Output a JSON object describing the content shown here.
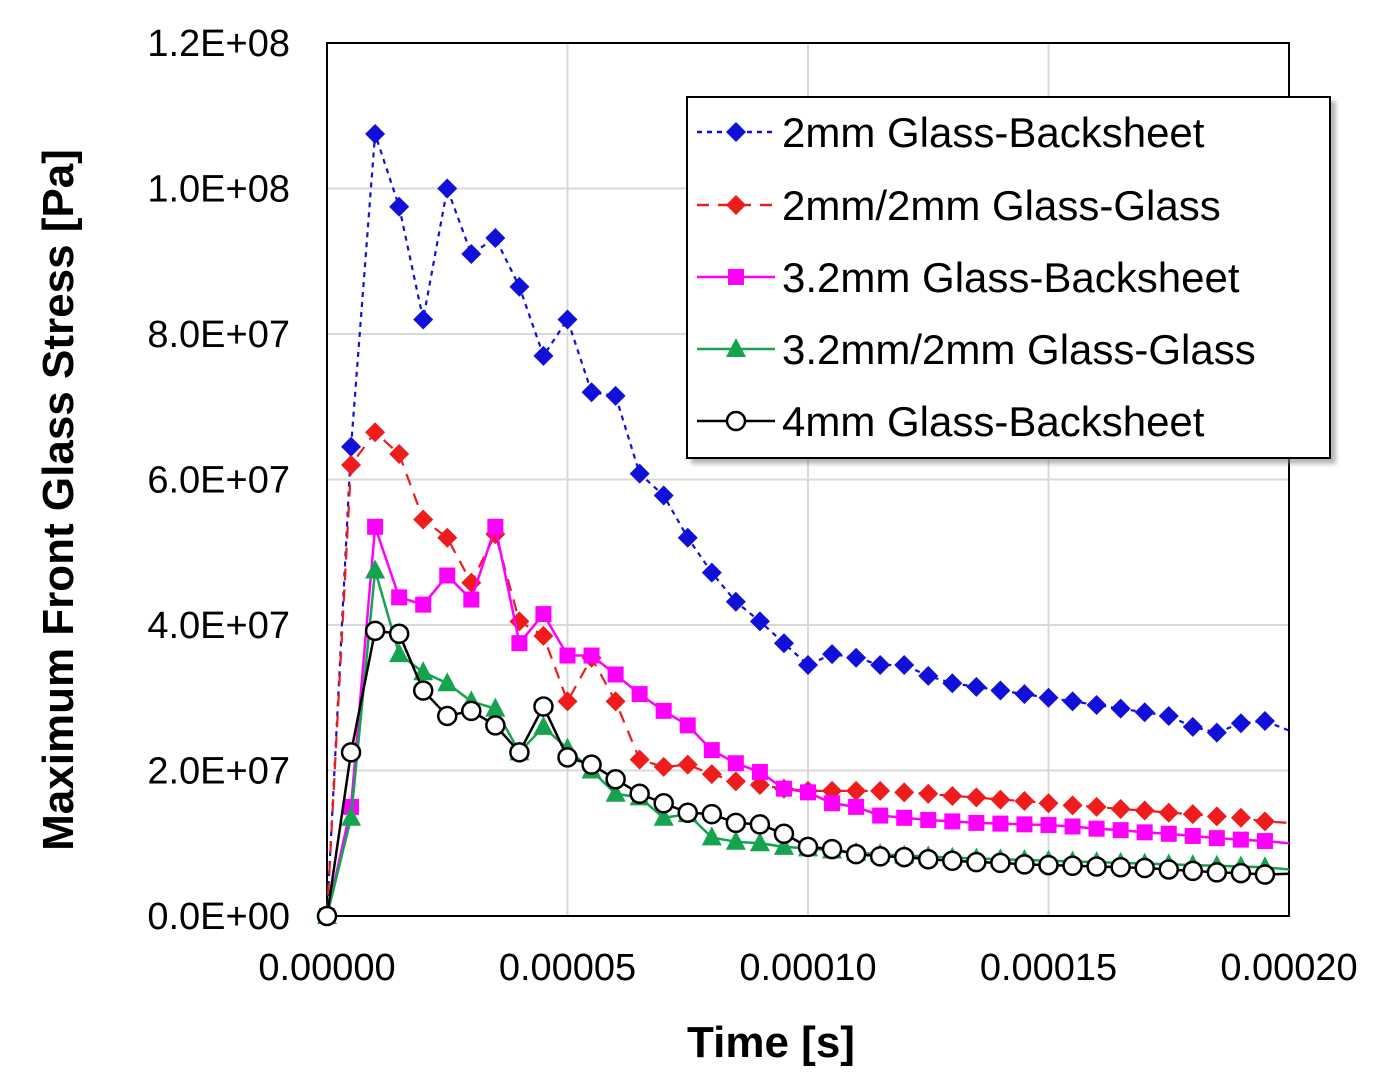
{
  "chart_data": {
    "type": "line",
    "title": "",
    "xlabel": "Time [s]",
    "ylabel": "Maximum Front Glass Stress [Pa]",
    "xlim": [
      0,
      0.0002
    ],
    "ylim": [
      0,
      120000000
    ],
    "x_ticks": [
      "0.00000",
      "0.00005",
      "0.00010",
      "0.00015",
      "0.00020"
    ],
    "x_tick_values": [
      0,
      5e-05,
      0.0001,
      0.00015,
      0.0002
    ],
    "y_ticks": [
      "0.0E+00",
      "2.0E+07",
      "4.0E+07",
      "6.0E+07",
      "8.0E+07",
      "1.0E+08",
      "1.2E+08"
    ],
    "y_tick_values": [
      0,
      20000000,
      40000000,
      60000000,
      80000000,
      100000000,
      120000000
    ],
    "grid": true,
    "legend_position": "top-right",
    "series": [
      {
        "name": "2mm Glass-Backsheet",
        "color": "#1010d8",
        "marker": "diamond",
        "line_style": "dotted",
        "x": [
          0,
          5e-06,
          1e-05,
          1.5e-05,
          2e-05,
          2.5e-05,
          3e-05,
          3.5e-05,
          4e-05,
          4.5e-05,
          5e-05,
          5.5e-05,
          6e-05,
          6.5e-05,
          7e-05,
          7.5e-05,
          8e-05,
          8.5e-05,
          9e-05,
          9.5e-05,
          0.0001,
          0.000105,
          0.00011,
          0.000115,
          0.00012,
          0.000125,
          0.00013,
          0.000135,
          0.00014,
          0.000145,
          0.00015,
          0.000155,
          0.00016,
          0.000165,
          0.00017,
          0.000175,
          0.00018,
          0.000185,
          0.00019,
          0.000195,
          0.0002
        ],
        "y": [
          0,
          64500000,
          107500000,
          97500000,
          82000000,
          100000000,
          91000000,
          93200000,
          86500000,
          77000000,
          82000000,
          72000000,
          71500000,
          60800000,
          57800000,
          52000000,
          47200000,
          43200000,
          40500000,
          37500000,
          34500000,
          36000000,
          35500000,
          34500000,
          34500000,
          33000000,
          32000000,
          31500000,
          31000000,
          30500000,
          30000000,
          29500000,
          29000000,
          28500000,
          28000000,
          27500000,
          26000000,
          25200000,
          26500000,
          26800000,
          25500000
        ]
      },
      {
        "name": "2mm/2mm Glass-Glass",
        "color": "#ee1c1c",
        "marker": "diamond",
        "line_style": "dashed",
        "x": [
          0,
          5e-06,
          1e-05,
          1.5e-05,
          2e-05,
          2.5e-05,
          3e-05,
          3.5e-05,
          4e-05,
          4.5e-05,
          5e-05,
          5.5e-05,
          6e-05,
          6.5e-05,
          7e-05,
          7.5e-05,
          8e-05,
          8.5e-05,
          9e-05,
          9.5e-05,
          0.0001,
          0.000105,
          0.00011,
          0.000115,
          0.00012,
          0.000125,
          0.00013,
          0.000135,
          0.00014,
          0.000145,
          0.00015,
          0.000155,
          0.00016,
          0.000165,
          0.00017,
          0.000175,
          0.00018,
          0.000185,
          0.00019,
          0.000195,
          0.0002
        ],
        "y": [
          0,
          62000000,
          66500000,
          63500000,
          54500000,
          52000000,
          45800000,
          52500000,
          40500000,
          38500000,
          29500000,
          35500000,
          29500000,
          21500000,
          20500000,
          20800000,
          19500000,
          18500000,
          18000000,
          17500000,
          17200000,
          17200000,
          17200000,
          17200000,
          17000000,
          16800000,
          16500000,
          16300000,
          16000000,
          15800000,
          15500000,
          15200000,
          15000000,
          14700000,
          14500000,
          14200000,
          14000000,
          13700000,
          13500000,
          13000000,
          12800000
        ]
      },
      {
        "name": "3.2mm Glass-Backsheet",
        "color": "#ff00ff",
        "marker": "square",
        "line_style": "solid",
        "x": [
          0,
          5e-06,
          1e-05,
          1.5e-05,
          2e-05,
          2.5e-05,
          3e-05,
          3.5e-05,
          4e-05,
          4.5e-05,
          5e-05,
          5.5e-05,
          6e-05,
          6.5e-05,
          7e-05,
          7.5e-05,
          8e-05,
          8.5e-05,
          9e-05,
          9.5e-05,
          0.0001,
          0.000105,
          0.00011,
          0.000115,
          0.00012,
          0.000125,
          0.00013,
          0.000135,
          0.00014,
          0.000145,
          0.00015,
          0.000155,
          0.00016,
          0.000165,
          0.00017,
          0.000175,
          0.00018,
          0.000185,
          0.00019,
          0.000195,
          0.0002
        ],
        "y": [
          0,
          15000000,
          53500000,
          43800000,
          42800000,
          46800000,
          43500000,
          53500000,
          37500000,
          41500000,
          35800000,
          35800000,
          33200000,
          30500000,
          28200000,
          26200000,
          22800000,
          21000000,
          19800000,
          17500000,
          17000000,
          15500000,
          15000000,
          13800000,
          13500000,
          13200000,
          13000000,
          12800000,
          12700000,
          12600000,
          12500000,
          12300000,
          12000000,
          11800000,
          11500000,
          11300000,
          11000000,
          10700000,
          10500000,
          10300000,
          10000000
        ]
      },
      {
        "name": "3.2mm/2mm Glass-Glass",
        "color": "#16a350",
        "marker": "triangle",
        "line_style": "solid",
        "x": [
          0,
          5e-06,
          1e-05,
          1.5e-05,
          2e-05,
          2.5e-05,
          3e-05,
          3.5e-05,
          4e-05,
          4.5e-05,
          5e-05,
          5.5e-05,
          6e-05,
          6.5e-05,
          7e-05,
          7.5e-05,
          8e-05,
          8.5e-05,
          9e-05,
          9.5e-05,
          0.0001,
          0.000105,
          0.00011,
          0.000115,
          0.00012,
          0.000125,
          0.00013,
          0.000135,
          0.00014,
          0.000145,
          0.00015,
          0.000155,
          0.00016,
          0.000165,
          0.00017,
          0.000175,
          0.00018,
          0.000185,
          0.00019,
          0.000195,
          0.0002
        ],
        "y": [
          0,
          13500000,
          47500000,
          36000000,
          33500000,
          32000000,
          29500000,
          28500000,
          22500000,
          26000000,
          23000000,
          20000000,
          16800000,
          16300000,
          13500000,
          14000000,
          10800000,
          10200000,
          10000000,
          9500000,
          9300000,
          9000000,
          8700000,
          8500000,
          8300000,
          8200000,
          8000000,
          7900000,
          7800000,
          7700000,
          7600000,
          7500000,
          7400000,
          7300000,
          7200000,
          7100000,
          7000000,
          6900000,
          6800000,
          6700000,
          6400000
        ]
      },
      {
        "name": "4mm Glass-Backsheet",
        "color": "#000000",
        "marker": "circle-open",
        "line_style": "solid",
        "x": [
          0,
          5e-06,
          1e-05,
          1.5e-05,
          2e-05,
          2.5e-05,
          3e-05,
          3.5e-05,
          4e-05,
          4.5e-05,
          5e-05,
          5.5e-05,
          6e-05,
          6.5e-05,
          7e-05,
          7.5e-05,
          8e-05,
          8.5e-05,
          9e-05,
          9.5e-05,
          0.0001,
          0.000105,
          0.00011,
          0.000115,
          0.00012,
          0.000125,
          0.00013,
          0.000135,
          0.00014,
          0.000145,
          0.00015,
          0.000155,
          0.00016,
          0.000165,
          0.00017,
          0.000175,
          0.00018,
          0.000185,
          0.00019,
          0.000195,
          0.0002
        ],
        "y": [
          0,
          22500000,
          39200000,
          38800000,
          31000000,
          27500000,
          28200000,
          26200000,
          22500000,
          28800000,
          21800000,
          20800000,
          18800000,
          16800000,
          15500000,
          14200000,
          14000000,
          12800000,
          12600000,
          11300000,
          9500000,
          9200000,
          8500000,
          8200000,
          8100000,
          7800000,
          7600000,
          7400000,
          7300000,
          7100000,
          7000000,
          6900000,
          6800000,
          6700000,
          6600000,
          6400000,
          6200000,
          6000000,
          5900000,
          5700000,
          5800000
        ]
      }
    ]
  }
}
